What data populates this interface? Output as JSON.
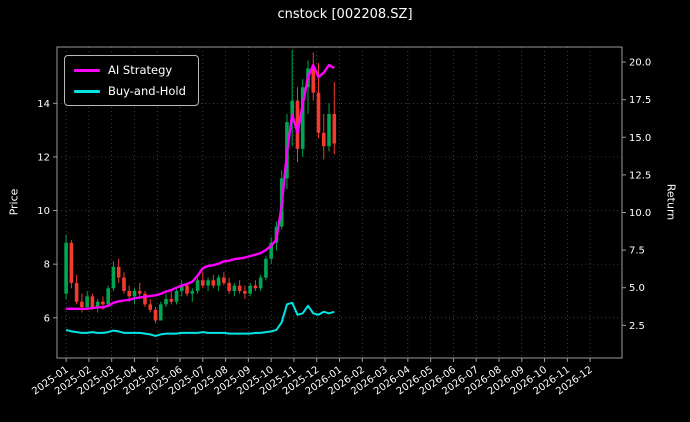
{
  "title": "cnstock [002208.SZ]",
  "axes": {
    "left_label": "Price",
    "right_label": "Return"
  },
  "legend": [
    {
      "label": "AI Strategy",
      "color": "#ff00ff"
    },
    {
      "label": "Buy-and-Hold",
      "color": "#00e5e5"
    }
  ],
  "chart_data": {
    "type": "candlestick",
    "overlay_type": "line",
    "title": "cnstock [002208.SZ]",
    "ylabel_left": "Price",
    "ylabel_right": "Return",
    "grid": true,
    "legend_position": "upper-left",
    "colors": {
      "background": "#000000",
      "text": "#ffffff",
      "frame": "#9a9a9a",
      "grid": "#5a5a5a",
      "candle_up": "#00a651",
      "candle_down": "#f23b2f",
      "ai_line": "#ff00ff",
      "bh_line": "#00e5e5"
    },
    "x_ticks": [
      "2025-01",
      "2025-02",
      "2025-03",
      "2025-04",
      "2025-05",
      "2025-06",
      "2025-07",
      "2025-08",
      "2025-09",
      "2025-10",
      "2025-11",
      "2025-12",
      "2026-01",
      "2026-02",
      "2026-03",
      "2026-04",
      "2026-05",
      "2026-06",
      "2026-07",
      "2026-08",
      "2026-09",
      "2026-10",
      "2026-11",
      "2026-12"
    ],
    "left_ticks": [
      6,
      8,
      10,
      12,
      14
    ],
    "right_ticks": [
      2.5,
      5.0,
      7.5,
      10.0,
      12.5,
      15.0,
      17.5,
      20.0
    ],
    "left_range": [
      4.5,
      16.1
    ],
    "right_range": [
      0.33,
      21.0
    ],
    "x_range_months": [
      -0.4,
      24.4
    ],
    "x_start_month": 0,
    "x_step_month": 0.2308,
    "candles_ohlc": [
      [
        6.9,
        9.1,
        6.7,
        8.8
      ],
      [
        8.8,
        8.9,
        7.1,
        7.3
      ],
      [
        7.3,
        7.6,
        6.5,
        6.6
      ],
      [
        6.6,
        6.9,
        6.2,
        6.4
      ],
      [
        6.4,
        7.0,
        6.3,
        6.8
      ],
      [
        6.8,
        6.9,
        6.3,
        6.4
      ],
      [
        6.4,
        6.7,
        6.2,
        6.6
      ],
      [
        6.6,
        6.8,
        6.3,
        6.5
      ],
      [
        6.5,
        7.2,
        6.4,
        7.1
      ],
      [
        7.1,
        8.1,
        7.0,
        7.9
      ],
      [
        7.9,
        8.2,
        7.3,
        7.5
      ],
      [
        7.5,
        7.7,
        6.9,
        7.0
      ],
      [
        7.0,
        7.2,
        6.6,
        6.8
      ],
      [
        6.8,
        7.1,
        6.5,
        7.0
      ],
      [
        7.0,
        7.3,
        6.7,
        6.9
      ],
      [
        6.9,
        7.0,
        6.4,
        6.5
      ],
      [
        6.5,
        6.7,
        6.2,
        6.3
      ],
      [
        6.3,
        6.4,
        5.8,
        5.9
      ],
      [
        5.9,
        6.6,
        5.9,
        6.5
      ],
      [
        6.5,
        6.9,
        6.4,
        6.7
      ],
      [
        6.7,
        7.0,
        6.5,
        6.6
      ],
      [
        6.6,
        7.1,
        6.5,
        7.0
      ],
      [
        7.0,
        7.4,
        6.8,
        7.2
      ],
      [
        7.2,
        7.3,
        6.8,
        6.9
      ],
      [
        6.9,
        7.1,
        6.6,
        7.0
      ],
      [
        7.0,
        7.5,
        6.9,
        7.4
      ],
      [
        7.4,
        7.7,
        7.1,
        7.2
      ],
      [
        7.2,
        7.5,
        7.0,
        7.4
      ],
      [
        7.4,
        7.6,
        7.1,
        7.2
      ],
      [
        7.2,
        7.6,
        7.0,
        7.5
      ],
      [
        7.5,
        7.7,
        7.2,
        7.3
      ],
      [
        7.3,
        7.5,
        6.9,
        7.0
      ],
      [
        7.0,
        7.3,
        6.8,
        7.2
      ],
      [
        7.2,
        7.4,
        6.9,
        7.0
      ],
      [
        7.0,
        7.2,
        6.7,
        6.9
      ],
      [
        6.9,
        7.3,
        6.8,
        7.2
      ],
      [
        7.2,
        7.4,
        7.0,
        7.1
      ],
      [
        7.1,
        7.6,
        7.0,
        7.5
      ],
      [
        7.5,
        8.3,
        7.4,
        8.2
      ],
      [
        8.2,
        9.0,
        8.0,
        8.8
      ],
      [
        8.8,
        9.6,
        8.5,
        9.4
      ],
      [
        9.4,
        11.5,
        9.3,
        11.2
      ],
      [
        11.2,
        13.6,
        10.8,
        13.3
      ],
      [
        13.3,
        16.0,
        12.4,
        14.1
      ],
      [
        14.1,
        14.6,
        11.8,
        12.3
      ],
      [
        12.3,
        14.9,
        12.0,
        14.6
      ],
      [
        14.6,
        15.6,
        13.6,
        15.3
      ],
      [
        15.3,
        15.9,
        14.1,
        14.4
      ],
      [
        14.4,
        15.5,
        12.7,
        12.9
      ],
      [
        12.9,
        13.6,
        11.9,
        12.4
      ],
      [
        12.4,
        14.0,
        12.2,
        13.6
      ],
      [
        13.6,
        14.8,
        12.1,
        12.5
      ]
    ],
    "series": [
      {
        "name": "AI Strategy",
        "axis": "right",
        "color": "#ff00ff",
        "values": [
          3.6,
          3.6,
          3.6,
          3.6,
          3.6,
          3.65,
          3.7,
          3.7,
          3.8,
          4.0,
          4.1,
          4.15,
          4.2,
          4.3,
          4.35,
          4.4,
          4.45,
          4.5,
          4.6,
          4.75,
          4.85,
          5.0,
          5.15,
          5.25,
          5.4,
          5.8,
          6.3,
          6.45,
          6.5,
          6.6,
          6.75,
          6.8,
          6.9,
          6.95,
          7.0,
          7.1,
          7.2,
          7.3,
          7.5,
          7.8,
          8.2,
          10.5,
          14.0,
          16.5,
          15.3,
          17.2,
          19.0,
          19.8,
          19.0,
          19.3,
          19.8,
          19.6
        ]
      },
      {
        "name": "Buy-and-Hold",
        "axis": "right",
        "color": "#00e5e5",
        "values": [
          2.2,
          2.1,
          2.05,
          2.0,
          2.0,
          2.05,
          2.0,
          2.0,
          2.05,
          2.15,
          2.1,
          2.0,
          2.0,
          2.0,
          2.0,
          1.95,
          1.9,
          1.8,
          1.9,
          1.95,
          1.95,
          1.95,
          2.0,
          2.0,
          2.0,
          2.0,
          2.05,
          2.0,
          2.0,
          2.0,
          2.0,
          1.95,
          1.95,
          1.95,
          1.95,
          1.95,
          2.0,
          2.0,
          2.05,
          2.1,
          2.2,
          2.7,
          3.9,
          4.0,
          3.2,
          3.3,
          3.8,
          3.3,
          3.2,
          3.4,
          3.3,
          3.4
        ]
      }
    ]
  }
}
